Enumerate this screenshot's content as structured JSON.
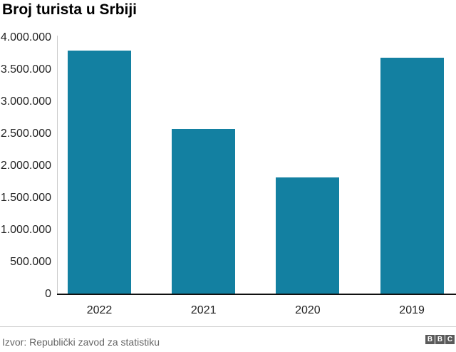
{
  "header": {
    "title": "Broj turista u Srbiji"
  },
  "chart_data": {
    "type": "bar",
    "categories": [
      "2022",
      "2021",
      "2020",
      "2019"
    ],
    "values": [
      3800000,
      2580000,
      1820000,
      3690000
    ],
    "title": "Broj turista u Srbiji",
    "xlabel": "",
    "ylabel": "",
    "ylim": [
      0,
      4000000
    ],
    "ytick_values": [
      0,
      500000,
      1000000,
      1500000,
      2000000,
      2500000,
      3000000,
      3500000,
      4000000
    ],
    "ytick_labels": [
      "0",
      "500.000",
      "1.000.000",
      "1.500.000",
      "2.000.000",
      "2.500.000",
      "3.000.000",
      "3.500.000",
      "4.000.000"
    ],
    "grid": false,
    "legend": "none",
    "bar_color": "#1380A1",
    "axis_color": "#111111",
    "axis_line_color": "#cbcbcb",
    "tick_text_color": "#222222"
  },
  "footer": {
    "source": "Izvor: Republički zavod za statistiku",
    "logo_letters": [
      "B",
      "B",
      "C"
    ],
    "logo_color": "#5a5a5a"
  }
}
